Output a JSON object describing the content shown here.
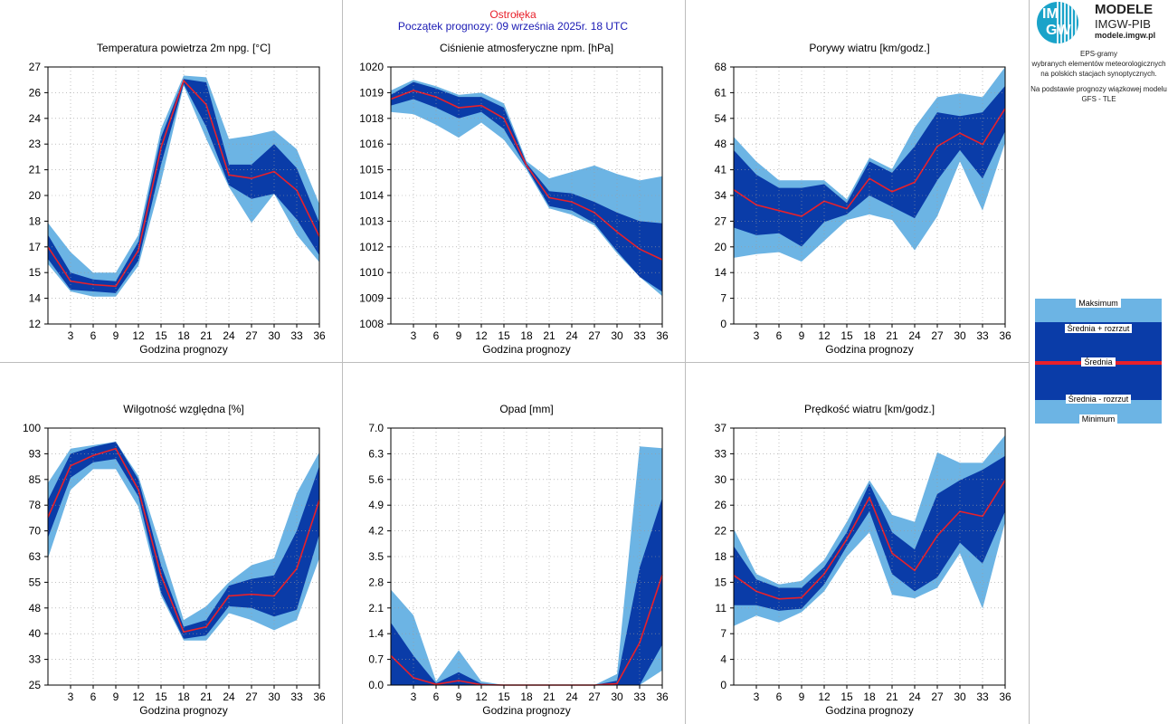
{
  "header": {
    "station": "Ostrołęka",
    "forecast_start": "Początek prognozy: 09 września 2025r. 18 UTC"
  },
  "colors": {
    "outer_band": "#6cb4e4",
    "inner_band": "#0a3ca8",
    "mean_line": "#e8202a",
    "station_title": "#e8202a",
    "start_title": "#1a1ab4"
  },
  "logo": {
    "im": "IM",
    "gw": "GW",
    "line1": "MODELE",
    "line2": "IMGW-PIB",
    "line3": "modele.imgw.pl"
  },
  "description": {
    "line1": "EPS-gramy",
    "line2": "wybranych elementów meteorologicznych",
    "line3": "na polskich stacjach  synoptycznych.",
    "line4": "Na podstawie prognozy wiązkowej modelu",
    "line5": "GFS - TLE"
  },
  "legend": {
    "max": "Maksimum",
    "mean_plus": "Średnia + rozrzut",
    "mean": "Średnia",
    "mean_minus": "Średnia - rozrzut",
    "min": "Minimum"
  },
  "chart_data": [
    {
      "type": "area",
      "title": "Temperatura powietrza 2m npg. [°C]",
      "xlabel": "Godzina prognozy",
      "x": [
        0,
        3,
        6,
        9,
        12,
        15,
        18,
        21,
        24,
        27,
        30,
        33,
        36
      ],
      "xticks": [
        3,
        6,
        9,
        12,
        15,
        18,
        21,
        24,
        27,
        30,
        33,
        36
      ],
      "ylim": [
        12,
        27
      ],
      "yticks": [
        "12",
        "14",
        "15",
        "17",
        "18",
        "20",
        "21",
        "23",
        "24",
        "26",
        "27"
      ],
      "series": [
        {
          "role": "max",
          "values": [
            17.9,
            16.2,
            15.0,
            15.0,
            17.2,
            23.4,
            26.5,
            26.4,
            22.8,
            23.0,
            23.3,
            22.2,
            19.0
          ]
        },
        {
          "role": "mean_plus",
          "values": [
            17.2,
            15.0,
            14.6,
            14.5,
            16.8,
            22.9,
            26.3,
            26.1,
            21.3,
            21.3,
            22.5,
            21.1,
            17.9
          ]
        },
        {
          "role": "mean",
          "values": [
            16.5,
            14.5,
            14.3,
            14.2,
            16.3,
            22.3,
            26.2,
            24.8,
            20.7,
            20.5,
            20.9,
            19.8,
            17.1
          ]
        },
        {
          "role": "mean_minus",
          "values": [
            15.8,
            14.0,
            13.9,
            13.8,
            15.7,
            21.3,
            26.0,
            23.5,
            20.1,
            19.3,
            19.6,
            18.1,
            16.0
          ]
        },
        {
          "role": "min",
          "values": [
            15.5,
            13.9,
            13.6,
            13.6,
            15.4,
            20.3,
            25.9,
            22.8,
            20.0,
            17.9,
            19.6,
            17.2,
            15.6
          ]
        }
      ]
    },
    {
      "type": "area",
      "title": "Ciśnienie atmosferyczne npm. [hPa]",
      "xlabel": "Godzina prognozy",
      "x": [
        0,
        3,
        6,
        9,
        12,
        15,
        18,
        21,
        24,
        27,
        30,
        33,
        36
      ],
      "xticks": [
        3,
        6,
        9,
        12,
        15,
        18,
        21,
        24,
        27,
        30,
        33,
        36
      ],
      "ylim": [
        1008,
        1020
      ],
      "yticks": [
        "1008",
        "1009",
        "1010",
        "1012",
        "1013",
        "1014",
        "1015",
        "1016",
        "1018",
        "1019",
        "1020"
      ],
      "series": [
        {
          "role": "max",
          "values": [
            1018.9,
            1019.4,
            1019.1,
            1018.7,
            1018.8,
            1018.3,
            1015.6,
            1014.8,
            1015.1,
            1015.4,
            1015.0,
            1014.7,
            1014.9
          ]
        },
        {
          "role": "mean_plus",
          "values": [
            1018.7,
            1019.3,
            1019.0,
            1018.6,
            1018.6,
            1018.1,
            1015.5,
            1014.2,
            1014.1,
            1013.7,
            1013.2,
            1012.8,
            1012.7
          ]
        },
        {
          "role": "mean",
          "values": [
            1018.5,
            1018.9,
            1018.6,
            1018.1,
            1018.2,
            1017.6,
            1015.4,
            1013.9,
            1013.7,
            1013.2,
            1012.3,
            1011.5,
            1011.0
          ]
        },
        {
          "role": "mean_minus",
          "values": [
            1018.2,
            1018.5,
            1018.1,
            1017.6,
            1017.9,
            1017.1,
            1015.3,
            1013.5,
            1013.3,
            1012.7,
            1011.4,
            1010.2,
            1009.5
          ]
        },
        {
          "role": "min",
          "values": [
            1017.9,
            1017.8,
            1017.3,
            1016.7,
            1017.4,
            1016.6,
            1015.2,
            1013.4,
            1013.1,
            1012.6,
            1011.3,
            1010.2,
            1009.3
          ]
        }
      ]
    },
    {
      "type": "area",
      "title": "Porywy wiatru [km/godz.]",
      "xlabel": "Godzina prognozy",
      "x": [
        0,
        3,
        6,
        9,
        12,
        15,
        18,
        21,
        24,
        27,
        30,
        33,
        36
      ],
      "xticks": [
        3,
        6,
        9,
        12,
        15,
        18,
        21,
        24,
        27,
        30,
        33,
        36
      ],
      "ylim": [
        0,
        68
      ],
      "yticks": [
        "0",
        "7",
        "14",
        "20",
        "27",
        "34",
        "41",
        "48",
        "54",
        "61",
        "68"
      ],
      "series": [
        {
          "role": "max",
          "values": [
            49.5,
            43.0,
            38.0,
            38.0,
            38.0,
            33.0,
            44.0,
            41.0,
            52.0,
            60.0,
            61.0,
            60.0,
            68.0
          ]
        },
        {
          "role": "mean_plus",
          "values": [
            46.0,
            39.5,
            36.0,
            36.0,
            37.0,
            32.0,
            43.0,
            40.0,
            47.0,
            56.0,
            55.0,
            56.0,
            63.0
          ]
        },
        {
          "role": "mean",
          "values": [
            35.5,
            31.5,
            30.0,
            28.5,
            32.5,
            30.5,
            38.5,
            35.0,
            37.5,
            47.0,
            50.5,
            47.5,
            57.0
          ]
        },
        {
          "role": "mean_minus",
          "values": [
            25.5,
            23.5,
            24.0,
            20.5,
            27.0,
            29.0,
            34.0,
            31.0,
            28.0,
            38.0,
            46.0,
            38.5,
            51.0
          ]
        },
        {
          "role": "min",
          "values": [
            17.5,
            18.5,
            19.0,
            16.5,
            22.0,
            27.5,
            29.0,
            27.5,
            19.5,
            28.5,
            43.0,
            30.0,
            48.0
          ]
        }
      ]
    },
    {
      "type": "area",
      "title": "Wilgotność względna [%]",
      "xlabel": "Godzina prognozy",
      "x": [
        0,
        3,
        6,
        9,
        12,
        15,
        18,
        21,
        24,
        27,
        30,
        33,
        36
      ],
      "xticks": [
        3,
        6,
        9,
        12,
        15,
        18,
        21,
        24,
        27,
        30,
        33,
        36
      ],
      "ylim": [
        25,
        100
      ],
      "yticks": [
        "25",
        "33",
        "40",
        "48",
        "55",
        "63",
        "70",
        "78",
        "85",
        "93",
        "100"
      ],
      "series": [
        {
          "role": "max",
          "values": [
            84.0,
            94.0,
            95.0,
            96.0,
            86.0,
            65.0,
            44.0,
            48.0,
            55.0,
            60.0,
            62.0,
            81.0,
            93.0
          ]
        },
        {
          "role": "mean_plus",
          "values": [
            79.0,
            92.5,
            94.5,
            96.0,
            85.0,
            60.0,
            42.0,
            44.0,
            54.0,
            56.0,
            57.0,
            70.0,
            89.0
          ]
        },
        {
          "role": "mean",
          "values": [
            74.0,
            89.0,
            92.0,
            94.0,
            82.0,
            57.0,
            40.5,
            42.0,
            51.0,
            51.5,
            51.0,
            59.0,
            79.0
          ]
        },
        {
          "role": "mean_minus",
          "values": [
            68.0,
            85.5,
            90.0,
            91.0,
            80.0,
            52.0,
            38.5,
            39.5,
            48.0,
            47.5,
            45.0,
            47.0,
            69.0
          ]
        },
        {
          "role": "min",
          "values": [
            62.0,
            82.0,
            88.0,
            88.0,
            77.0,
            51.0,
            38.0,
            38.0,
            46.0,
            44.0,
            41.0,
            44.0,
            62.0
          ]
        }
      ]
    },
    {
      "type": "area",
      "title": "Opad [mm]",
      "xlabel": "Godzina prognozy",
      "x": [
        0,
        3,
        6,
        9,
        12,
        15,
        18,
        21,
        24,
        27,
        30,
        33,
        36
      ],
      "xticks": [
        3,
        6,
        9,
        12,
        15,
        18,
        21,
        24,
        27,
        30,
        33,
        36
      ],
      "ylim": [
        0,
        7
      ],
      "yticks": [
        "0.0",
        "0.7",
        "1.4",
        "2.1",
        "2.8",
        "3.5",
        "4.2",
        "4.9",
        "5.6",
        "6.3",
        "7.0"
      ],
      "series": [
        {
          "role": "max",
          "values": [
            2.6,
            1.9,
            0.1,
            0.95,
            0.1,
            0.0,
            0.0,
            0.0,
            0.0,
            0.0,
            0.3,
            6.5,
            6.45
          ]
        },
        {
          "role": "mean_plus",
          "values": [
            1.7,
            0.8,
            0.05,
            0.35,
            0.04,
            0.0,
            0.0,
            0.0,
            0.0,
            0.0,
            0.12,
            3.2,
            5.1
          ]
        },
        {
          "role": "mean",
          "values": [
            0.8,
            0.2,
            0.02,
            0.12,
            0.01,
            0.0,
            0.0,
            0.0,
            0.0,
            0.0,
            0.04,
            1.15,
            3.0
          ]
        },
        {
          "role": "mean_minus",
          "values": [
            0.0,
            0.0,
            0.0,
            0.0,
            0.0,
            0.0,
            0.0,
            0.0,
            0.0,
            0.0,
            0.0,
            0.0,
            1.1
          ]
        },
        {
          "role": "min",
          "values": [
            0.0,
            0.0,
            0.0,
            0.0,
            0.0,
            0.0,
            0.0,
            0.0,
            0.0,
            0.0,
            0.0,
            0.0,
            0.4
          ]
        }
      ]
    },
    {
      "type": "area",
      "title": "Prędkość wiatru [km/godz.]",
      "xlabel": "Godzina prognozy",
      "x": [
        0,
        3,
        6,
        9,
        12,
        15,
        18,
        21,
        24,
        27,
        30,
        33,
        36
      ],
      "xticks": [
        3,
        6,
        9,
        12,
        15,
        18,
        21,
        24,
        27,
        30,
        33,
        36
      ],
      "ylim": [
        0,
        37
      ],
      "yticks": [
        "0",
        "4",
        "7",
        "11",
        "15",
        "18",
        "22",
        "26",
        "30",
        "33",
        "37"
      ],
      "series": [
        {
          "role": "max",
          "values": [
            22.5,
            16.0,
            14.5,
            15.0,
            18.0,
            23.5,
            29.5,
            24.5,
            23.5,
            33.5,
            32.0,
            32.0,
            36.0
          ]
        },
        {
          "role": "mean_plus",
          "values": [
            20.0,
            15.2,
            14.0,
            14.0,
            17.0,
            22.0,
            29.0,
            22.0,
            19.5,
            27.5,
            29.5,
            31.0,
            33.0
          ]
        },
        {
          "role": "mean",
          "values": [
            15.8,
            13.5,
            12.4,
            12.6,
            16.0,
            21.0,
            27.0,
            19.0,
            16.5,
            21.5,
            25.0,
            24.3,
            29.5
          ]
        },
        {
          "role": "mean_minus",
          "values": [
            11.5,
            11.5,
            10.7,
            11.0,
            14.5,
            20.0,
            25.0,
            16.0,
            13.5,
            15.5,
            20.5,
            17.5,
            25.0
          ]
        },
        {
          "role": "min",
          "values": [
            8.5,
            10.0,
            9.0,
            10.5,
            13.5,
            18.5,
            22.0,
            13.0,
            12.5,
            14.0,
            19.0,
            11.0,
            23.5
          ]
        }
      ]
    }
  ]
}
